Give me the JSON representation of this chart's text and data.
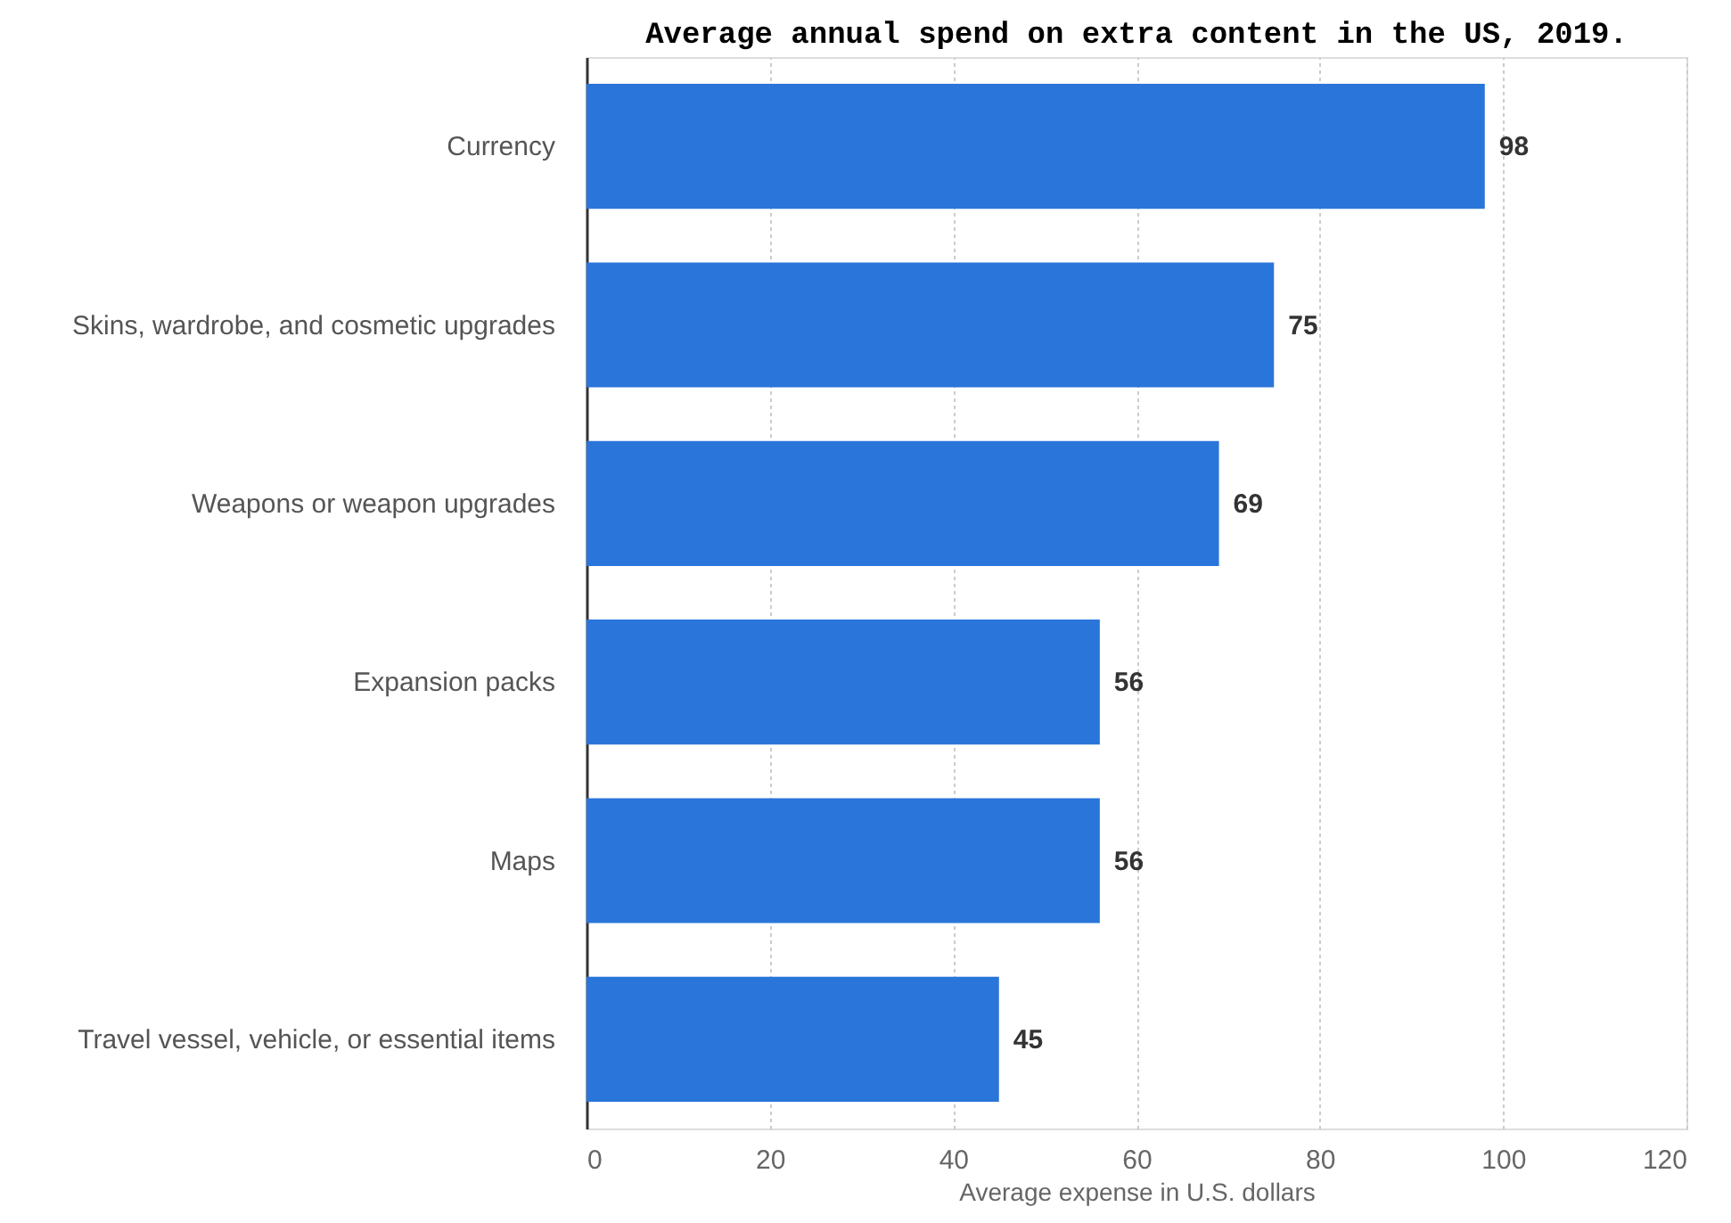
{
  "chart_data": {
    "type": "bar",
    "orientation": "horizontal",
    "title": "Average annual spend on extra content in the US, 2019.",
    "categories": [
      "Currency",
      "Skins, wardrobe, and cosmetic upgrades",
      "Weapons or weapon upgrades",
      "Expansion packs",
      "Maps",
      "Travel vessel, vehicle, or essential items"
    ],
    "values": [
      98,
      75,
      69,
      56,
      56,
      45
    ],
    "color": "#2a75d9",
    "xlim": [
      0,
      120
    ],
    "xticks": [
      0,
      20,
      40,
      60,
      80,
      100,
      120
    ],
    "xlabel": "Average expense in U.S. dollars",
    "grid": "x",
    "data_labels": true
  }
}
